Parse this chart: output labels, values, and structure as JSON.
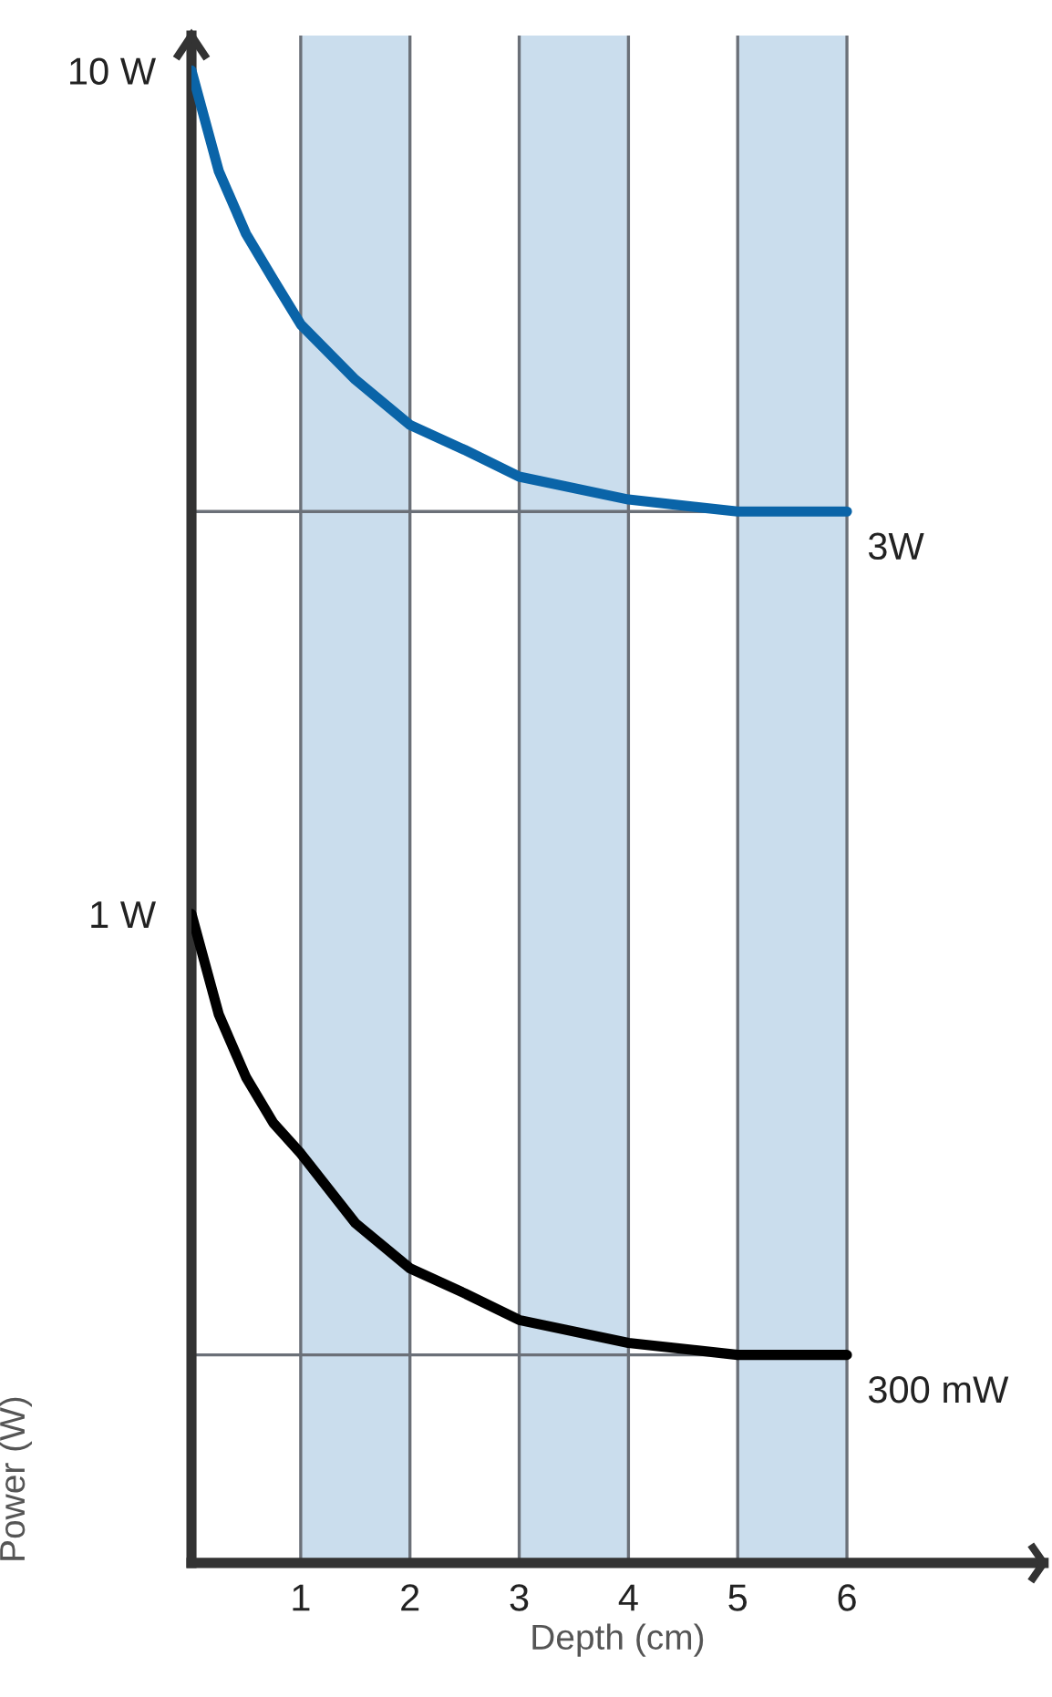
{
  "chart_data": {
    "type": "line",
    "xlabel": "Depth (cm)",
    "ylabel": "Power (W)",
    "xlim": [
      0,
      7.8
    ],
    "xticks": [
      1,
      2,
      3,
      4,
      5,
      6
    ],
    "ylim": [
      0.17,
      11
    ],
    "yticks": [
      {
        "value": 10,
        "label": "10 W"
      },
      {
        "value": 1,
        "label": "1 W"
      }
    ],
    "log": "y",
    "grid": "x",
    "series": [
      {
        "color": "#0a64a8",
        "x": [
          0,
          0.25,
          0.5,
          0.75,
          1,
          1.5,
          2,
          2.5,
          3,
          4,
          5,
          6
        ],
        "values": [
          10,
          7.6,
          6.4,
          5.65,
          5.0,
          4.3,
          3.8,
          3.55,
          3.3,
          3.1,
          3.0,
          3.0
        ]
      },
      {
        "color": "#000000",
        "x": [
          0,
          0.25,
          0.5,
          0.75,
          1,
          1.5,
          2,
          2.5,
          3,
          4,
          5,
          6
        ],
        "values": [
          1,
          0.76,
          0.64,
          0.565,
          0.52,
          0.43,
          0.38,
          0.355,
          0.33,
          0.31,
          0.3,
          0.3
        ]
      }
    ],
    "ref_lines": [
      {
        "axis": "y",
        "value": 3,
        "label": "3W",
        "color": "#6b7078"
      },
      {
        "axis": "y",
        "value": 0.3,
        "label": "300 mW",
        "color": "#6b7078"
      }
    ],
    "bands": [
      {
        "axis": "x",
        "from": 1,
        "to": 2,
        "color": "#cadded"
      },
      {
        "axis": "x",
        "from": 3,
        "to": 4,
        "color": "#cadded"
      },
      {
        "axis": "x",
        "from": 5,
        "to": 6,
        "color": "#cadded"
      }
    ]
  }
}
